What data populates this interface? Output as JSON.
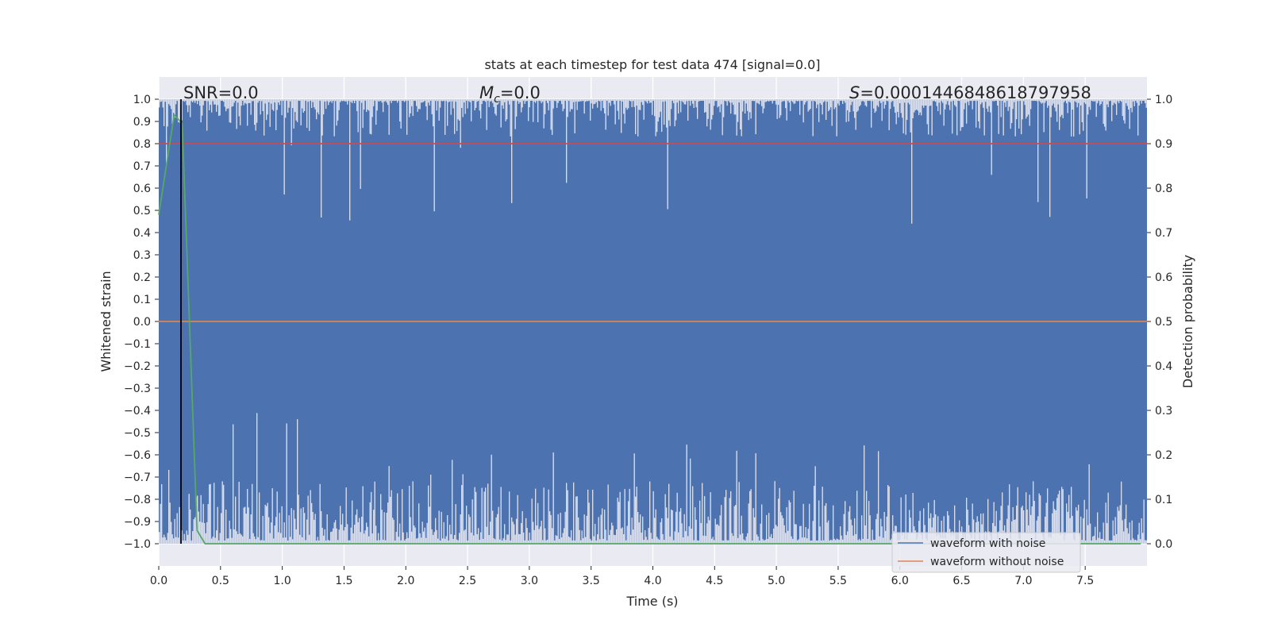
{
  "chart_data": {
    "type": "line",
    "title": "stats at each timestep for test data 474 [signal=0.0]",
    "xlabel": "Time (s)",
    "ylabel_left": "Whitened strain",
    "ylabel_right": "Detection probability",
    "xlim": [
      0.0,
      8.0
    ],
    "ylim_left": [
      -1.1,
      1.1
    ],
    "ylim_right": [
      -0.05,
      1.05
    ],
    "x_ticks": [
      "0.0",
      "0.5",
      "1.0",
      "1.5",
      "2.0",
      "2.5",
      "3.0",
      "3.5",
      "4.0",
      "4.5",
      "5.0",
      "5.5",
      "6.0",
      "6.5",
      "7.0",
      "7.5"
    ],
    "y_left_ticks": [
      "1.0",
      "0.9",
      "0.8",
      "0.7",
      "0.6",
      "0.5",
      "0.4",
      "0.3",
      "0.2",
      "0.1",
      "0.0",
      "−0.1",
      "−0.2",
      "−0.3",
      "−0.4",
      "−0.5",
      "−0.6",
      "−0.7",
      "−0.8",
      "−0.9",
      "−1.0"
    ],
    "y_right_ticks": [
      "1.0",
      "0.9",
      "0.8",
      "0.7",
      "0.6",
      "0.5",
      "0.4",
      "0.3",
      "0.2",
      "0.1",
      "0.0"
    ],
    "grid": true,
    "legend_position": "bottom-right",
    "annotations": {
      "snr": "SNR=0.0",
      "mc_symbol": "M",
      "mc_sub": "c",
      "mc_value": "=0.0",
      "s_symbol": "S",
      "s_value": "=0.0001446848618797958"
    },
    "vertical_marker_x": 0.18,
    "series": [
      {
        "name": "waveform with noise",
        "axis": "left",
        "color": "#4c72b0",
        "description_range": [
          -1.0,
          1.0
        ]
      },
      {
        "name": "waveform without noise",
        "axis": "left",
        "color": "#dd8452",
        "x": [
          0.0,
          8.0
        ],
        "y": [
          0.0,
          0.0
        ]
      },
      {
        "axis": "right",
        "color": "#c44e52",
        "x": [
          0.0,
          8.0
        ],
        "y": [
          0.9,
          0.9
        ]
      },
      {
        "axis": "right",
        "color": "#55a868",
        "x": [
          0.0,
          0.125,
          0.19,
          0.31,
          0.375,
          0.5,
          1.0,
          2.0,
          3.0,
          4.0,
          5.0,
          6.0,
          7.0,
          7.95
        ],
        "y": [
          0.74,
          0.965,
          0.945,
          0.03,
          0.0,
          0.0,
          0.0,
          0.0,
          0.0,
          0.0,
          0.0,
          0.0,
          0.0,
          0.0
        ]
      }
    ],
    "colors": {
      "axes_bg": "#eaeaf2",
      "grid": "#ffffff",
      "noise": "#4c72b0",
      "clean": "#dd8452",
      "threshold": "#c44e52",
      "probability": "#55a868",
      "marker": "#000000"
    }
  }
}
